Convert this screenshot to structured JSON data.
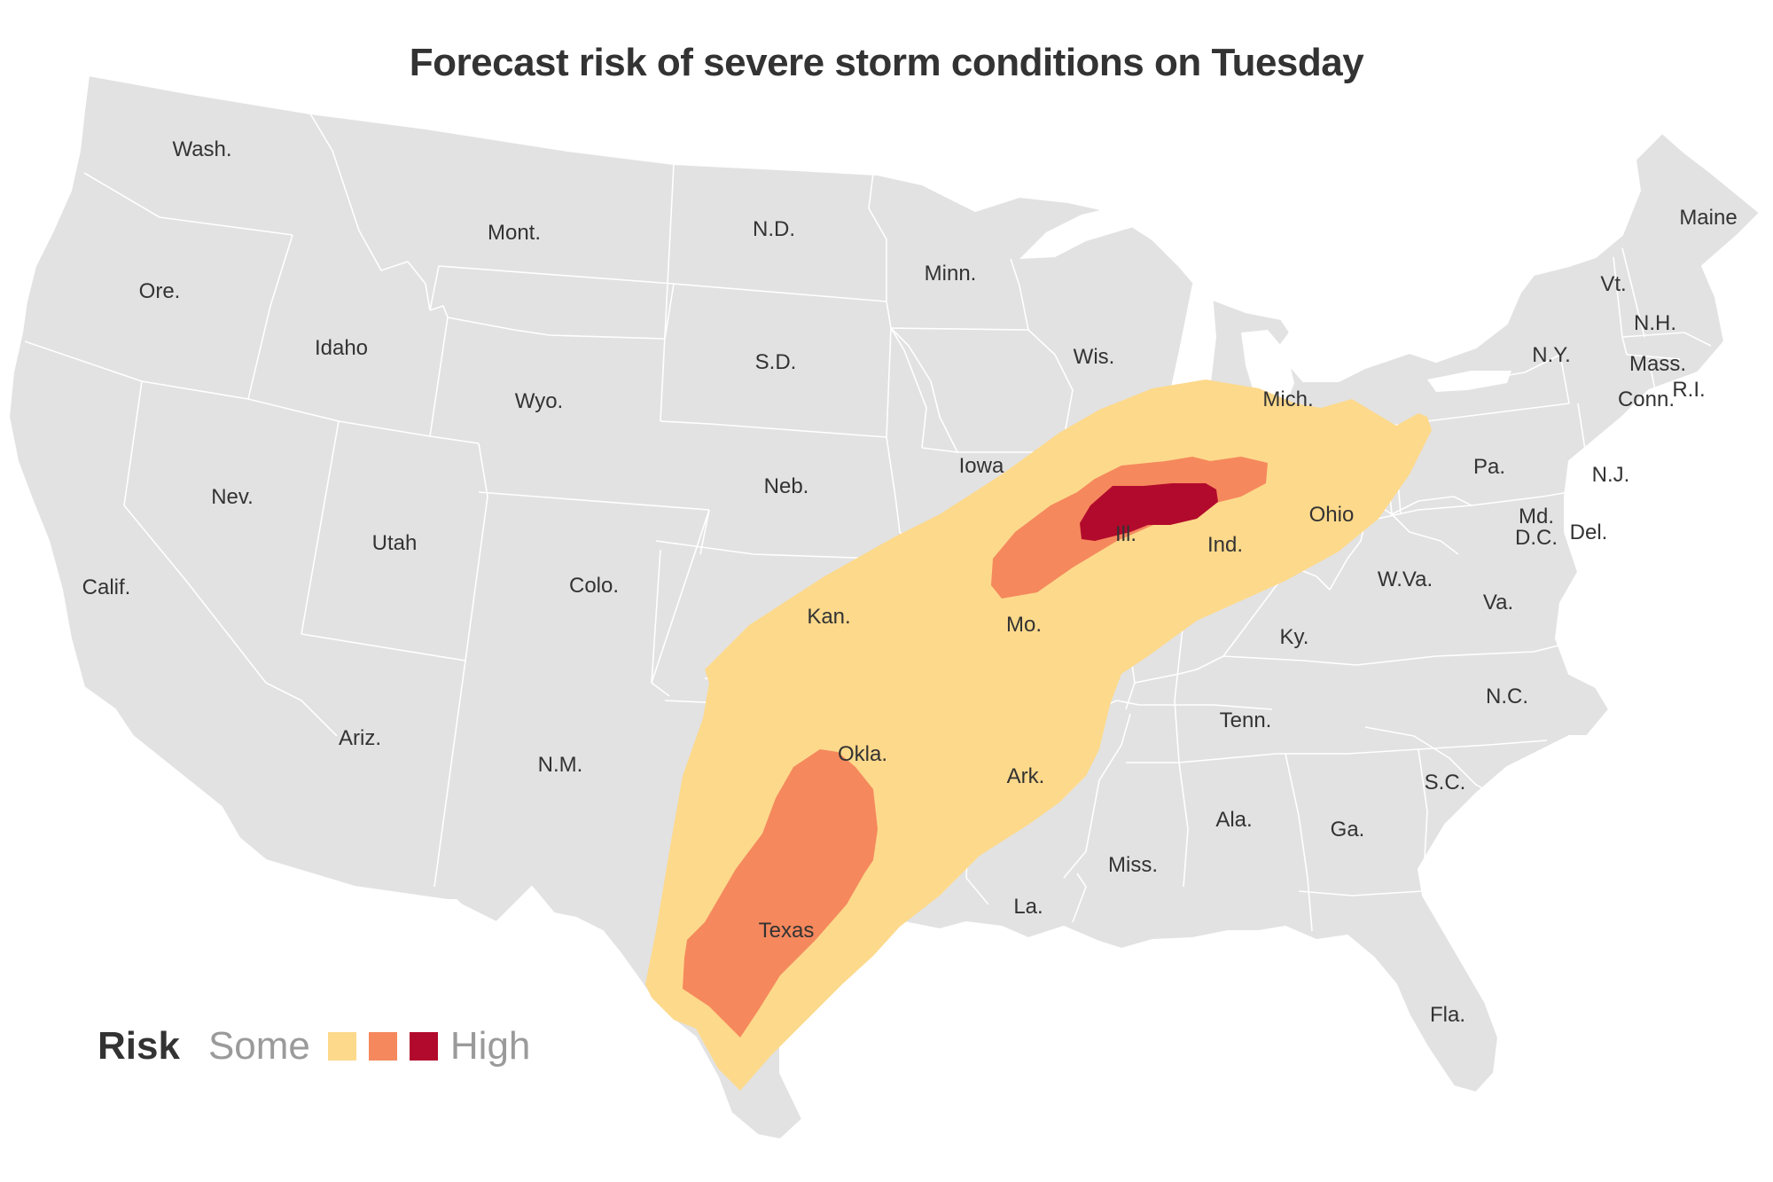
{
  "title": "Forecast risk of severe storm conditions on Tuesday",
  "colors": {
    "land": "#e2e2e2",
    "border": "#ffffff",
    "risk_some": "#fdd98b",
    "risk_mid": "#f5885d",
    "risk_high": "#b20a2c"
  },
  "legend": {
    "title": "Risk",
    "low_label": "Some",
    "high_label": "High"
  },
  "state_labels": {
    "wash": "Wash.",
    "ore": "Ore.",
    "calif": "Calif.",
    "idaho": "Idaho",
    "nev": "Nev.",
    "mont": "Mont.",
    "wyo": "Wyo.",
    "utah": "Utah",
    "ariz": "Ariz.",
    "colo": "Colo.",
    "nm": "N.M.",
    "nd": "N.D.",
    "sd": "S.D.",
    "neb": "Neb.",
    "kan": "Kan.",
    "okla": "Okla.",
    "texas": "Texas",
    "minn": "Minn.",
    "iowa": "Iowa",
    "mo": "Mo.",
    "ark": "Ark.",
    "la": "La.",
    "wis": "Wis.",
    "ill": "Ill.",
    "mich": "Mich.",
    "ind": "Ind.",
    "ohio": "Ohio",
    "ky": "Ky.",
    "tenn": "Tenn.",
    "miss": "Miss.",
    "ala": "Ala.",
    "ga": "Ga.",
    "fla": "Fla.",
    "sc": "S.C.",
    "nc": "N.C.",
    "va": "Va.",
    "wva": "W.Va.",
    "pa": "Pa.",
    "ny": "N.Y.",
    "md": "Md.",
    "dc": "D.C.",
    "del": "Del.",
    "nj": "N.J.",
    "conn": "Conn.",
    "ri": "R.I.",
    "mass": "Mass.",
    "vt": "Vt.",
    "nh": "N.H.",
    "maine": "Maine"
  }
}
